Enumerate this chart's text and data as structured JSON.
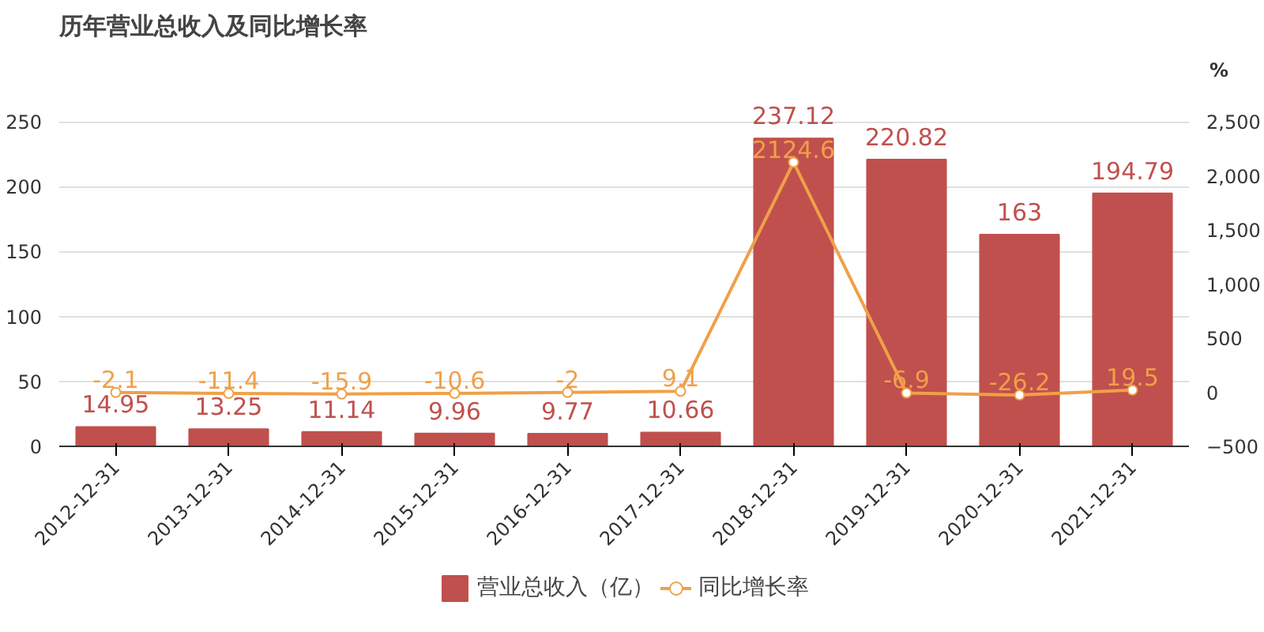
{
  "chart_data": {
    "type": "bar",
    "title": "历年营业总收入及同比增长率",
    "y2label": "%",
    "categories": [
      "2012-12-31",
      "2013-12-31",
      "2014-12-31",
      "2015-12-31",
      "2016-12-31",
      "2017-12-31",
      "2018-12-31",
      "2019-12-31",
      "2020-12-31",
      "2021-12-31"
    ],
    "series": [
      {
        "name": "营业总收入（亿）",
        "color": "#c0504d",
        "values": [
          14.95,
          13.25,
          11.14,
          9.96,
          9.77,
          10.66,
          237.12,
          220.82,
          163,
          194.79
        ]
      },
      {
        "name": "同比增长率",
        "type": "line",
        "axis": "y2",
        "color": "#f0a048",
        "marker": "circle",
        "values": [
          -2.1,
          -11.4,
          -15.9,
          -10.6,
          -2,
          9.1,
          2124.6,
          -6.9,
          -26.2,
          19.5
        ]
      }
    ],
    "ylim": [
      0,
      250
    ],
    "yticks": [
      0,
      50,
      100,
      150,
      200,
      250
    ],
    "y2lim": [
      -500,
      2500
    ],
    "y2ticks": [
      {
        "value": -500,
        "label": "−500"
      },
      0,
      500,
      {
        "value": 1000,
        "label": "1,000"
      },
      {
        "value": 1500,
        "label": "1,500"
      },
      {
        "value": 2000,
        "label": "2,000"
      },
      {
        "value": 2500,
        "label": "2,500"
      }
    ],
    "grid": "y",
    "legend": "bottom",
    "data_labels": true
  }
}
